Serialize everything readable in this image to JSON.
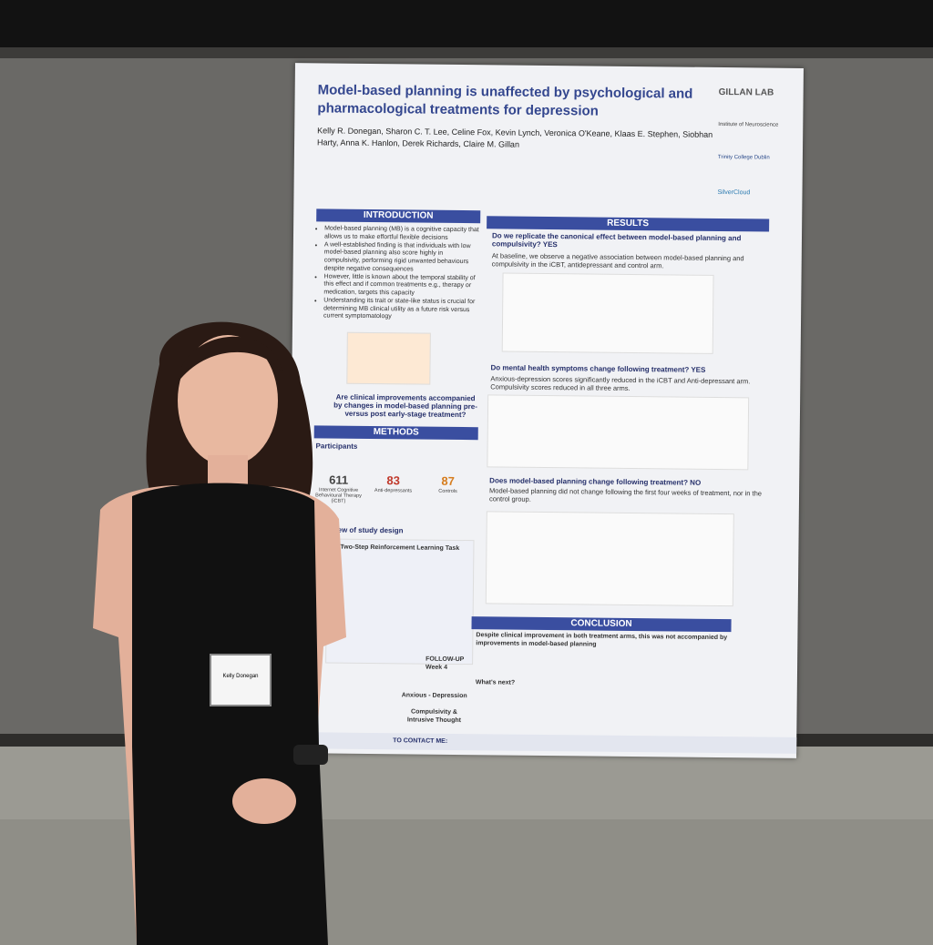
{
  "poster": {
    "title": "Model-based planning is unaffected by psychological and pharmacological treatments for depression",
    "authors": "Kelly R. Donegan, Sharon C. T. Lee, Celine Fox, Kevin Lynch, Veronica O'Keane, Klaas E. Stephen, Siobhan Harty, Anna K. Hanlon, Derek Richards, Claire M. Gillan",
    "logos": [
      "GILLAN LAB",
      "Institute of Neuroscience",
      "Trinity College Dublin",
      "SilverCloud"
    ],
    "introduction": {
      "heading": "INTRODUCTION",
      "bullets": [
        "Model-based planning (MB) is a cognitive capacity that allows us to make effortful flexible decisions",
        "A well-established finding is that individuals with low model-based planning also score highly in compulsivity, performing rigid unwanted behaviours despite negative consequences",
        "However, little is known about the temporal stability of this effect and if common treatments e.g., therapy or medication, targets this capacity",
        "Understanding its trait or state-like status is crucial for determining MB clinical utility as a future risk versus current symptomatology"
      ],
      "question": "Are clinical improvements accompanied by changes in model-based planning pre- versus post early-stage treatment?"
    },
    "methods": {
      "heading": "METHODS",
      "participants": "Participants",
      "groups": [
        {
          "count": 611,
          "label": "Internet Cognitive Behavioural Therapy (iCBT)"
        },
        {
          "count": 83,
          "label": "Anti-depressants"
        },
        {
          "count": 87,
          "label": "Controls"
        }
      ],
      "overview": "Overview of study design",
      "task": "Two-Step Reinforcement Learning Task",
      "followup": "FOLLOW-UP Week 4",
      "outcomes": [
        "Anxious - Depression",
        "Compulsivity & Intrusive Thought"
      ]
    },
    "results": {
      "heading": "RESULTS",
      "items": [
        {
          "question": "Do we replicate the canonical effect between model-based planning and compulsivity? YES",
          "text": "At baseline, we observe a negative association between model-based planning and compulsivity in the iCBT, antidepressant and control arm."
        },
        {
          "question": "Do mental health symptoms change following treatment? YES",
          "text": "Anxious-depression scores significantly reduced in the iCBT and Anti-depressant arm. Compulsivity scores reduced in all three arms."
        },
        {
          "question": "Does model-based planning change following treatment? NO",
          "text": "Model-based planning did not change following the first four weeks of treatment, nor in the control group."
        }
      ]
    },
    "conclusion": {
      "heading": "CONCLUSION",
      "text": "Despite clinical improvement in both treatment arms, this was not accompanied by improvements in model-based planning",
      "next": "What's next?"
    },
    "contact": "TO CONTACT ME:"
  },
  "badge": {
    "name": "Kelly Donegan"
  }
}
